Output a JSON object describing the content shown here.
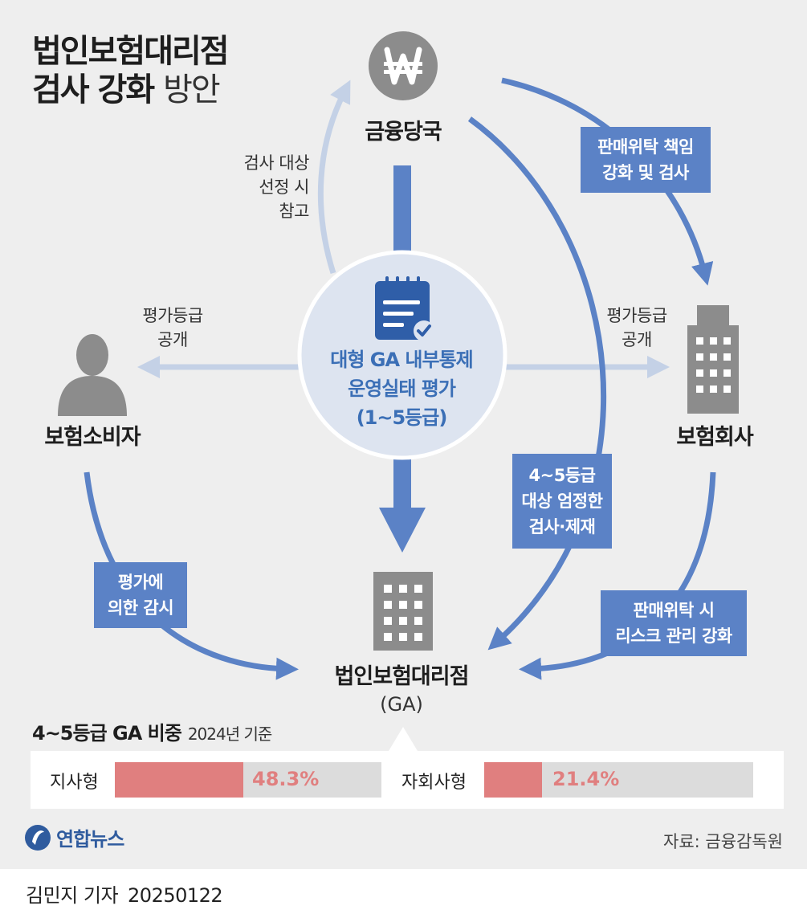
{
  "title": {
    "line1": "법인보험대리점",
    "line2_bold": "검사 강화",
    "line2_light": "방안"
  },
  "nodes": {
    "regulator": "금융당국",
    "consumer": "보험소비자",
    "insurer": "보험회사",
    "ga_name": "법인보험대리점",
    "ga_sub": "(GA)"
  },
  "center": {
    "line1": "대형 GA 내부통제",
    "line2": "운영실태 평가",
    "line3": "(1~5등급)"
  },
  "notes": {
    "inspection_ref": [
      "검사 대상",
      "선정 시",
      "참고"
    ],
    "grade_public_left": [
      "평가등급",
      "공개"
    ],
    "grade_public_right": [
      "평가등급",
      "공개"
    ]
  },
  "boxes": {
    "sales_resp": [
      "판매위탁 책임",
      "강화 및 검사"
    ],
    "grade45": [
      "4~5등급",
      "대상 엄정한",
      "검사·제재"
    ],
    "monitor": [
      "평가에",
      "의한 감시"
    ],
    "risk_mgmt": [
      "판매위탁 시",
      "리스크 관리 강화"
    ]
  },
  "stats": {
    "title": "4~5등급 GA 비중",
    "basis": "2024년 기준",
    "items": [
      {
        "label": "지사형",
        "value": 48.3,
        "value_text": "48.3%"
      },
      {
        "label": "자회사형",
        "value": 21.4,
        "value_text": "21.4%"
      }
    ]
  },
  "footer": {
    "logo_text": "연합뉴스",
    "source": "자료: 금융감독원",
    "reporter": "김민지 기자",
    "date": "20250122"
  },
  "icons": {
    "regulator": "won-circle-icon",
    "consumer": "person-icon",
    "insurer": "office-building-icon",
    "ga": "building-icon",
    "center": "clipboard-check-icon"
  },
  "colors": {
    "arrow_blue": "#5b82c6",
    "arrow_light": "#c4d1e6",
    "accent_red": "#e07f7f",
    "icon_gray": "#8c8c8c",
    "center_circle": "#dde4f0"
  }
}
